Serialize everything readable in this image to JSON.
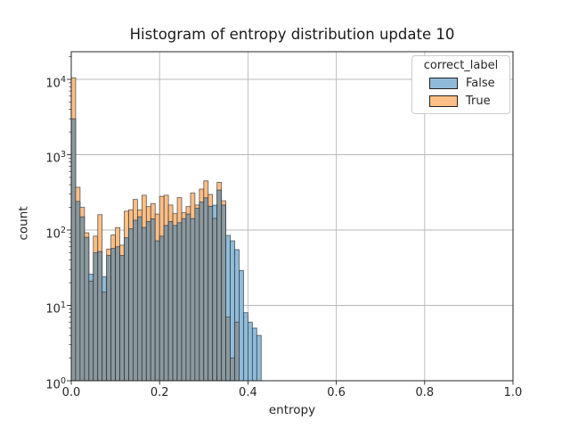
{
  "figure": {
    "title": "Histogram of entropy distribution update 10",
    "background": "#ffffff",
    "grid_color": "#b8b8b8",
    "spine_color": "#262626"
  },
  "axes": {
    "xlabel": "entropy",
    "ylabel": "count",
    "xlim": [
      0.0,
      1.0
    ],
    "x_tick_labels": [
      "0.0",
      "0.2",
      "0.4",
      "0.6",
      "0.8",
      "1.0"
    ],
    "x_tick_values": [
      0.0,
      0.2,
      0.4,
      0.6,
      0.8,
      1.0
    ],
    "y_scale": "log",
    "y_tick_exponents": [
      0,
      1,
      2,
      3,
      4
    ],
    "y_max_log": 4.367,
    "grid": true
  },
  "legend": {
    "title": "correct_label",
    "entries": [
      {
        "label": "False",
        "color": "#8fbbd9"
      },
      {
        "label": "True",
        "color": "#ffbf86"
      }
    ]
  },
  "chart_data": {
    "type": "bar",
    "subtype": "overlaid-histogram",
    "title": "Histogram of entropy distribution update 10",
    "xlabel": "entropy",
    "ylabel": "count",
    "yscale": "log",
    "xlim": [
      0.0,
      1.0
    ],
    "ylim": [
      1,
      23000
    ],
    "legend_position": "upper right",
    "grid": true,
    "bin_start": 0.0,
    "bin_width": 0.01,
    "hue": "correct_label",
    "series": [
      {
        "name": "False",
        "fill": "#8fbbd9",
        "values": [
          3000,
          240,
          150,
          80,
          26,
          50,
          52,
          24,
          46,
          57,
          60,
          46,
          79,
          104,
          135,
          150,
          108,
          130,
          141,
          72,
          83,
          115,
          130,
          115,
          125,
          142,
          163,
          142,
          195,
          235,
          268,
          207,
          214,
          340,
          215,
          85,
          72,
          55,
          29,
          8,
          6,
          5,
          4
        ]
      },
      {
        "name": "True",
        "fill": "#ffbf86",
        "values": [
          10500,
          370,
          200,
          92,
          21,
          83,
          160,
          15,
          56,
          86,
          108,
          63,
          178,
          186,
          255,
          185,
          290,
          205,
          225,
          163,
          280,
          290,
          215,
          165,
          270,
          170,
          205,
          310,
          215,
          350,
          450,
          297,
          143,
          430,
          245,
          7,
          2,
          6,
          0,
          0,
          0,
          0,
          0
        ]
      }
    ],
    "colors": {
      "false_fill": "#8fbbd9",
      "true_fill": "#ffbf86",
      "overlap_fill": "#8b999f",
      "edge": "rgba(35,42,50,0.75)"
    }
  }
}
